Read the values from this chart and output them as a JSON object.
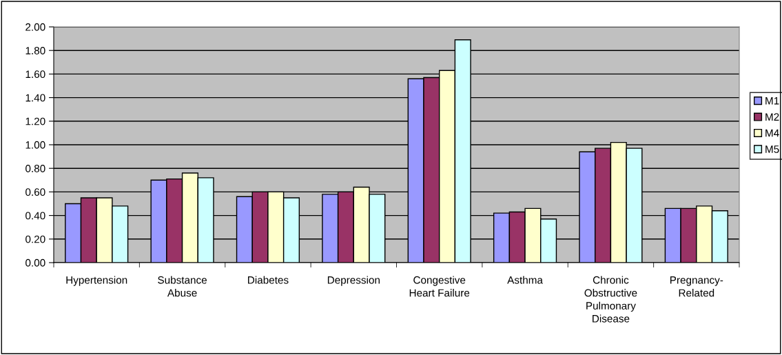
{
  "chart_data": {
    "type": "bar",
    "categories": [
      "Hypertension",
      "Substance\nAbuse",
      "Diabetes",
      "Depression",
      "Congestive\nHeart Failure",
      "Asthma",
      "Chronic\nObstructive\nPulmonary\nDisease",
      "Pregnancy-\nRelated"
    ],
    "series": [
      {
        "name": "M1",
        "color": "#9999ff",
        "values": [
          0.5,
          0.7,
          0.56,
          0.58,
          1.56,
          0.42,
          0.94,
          0.46
        ]
      },
      {
        "name": "M2",
        "color": "#993366",
        "values": [
          0.55,
          0.71,
          0.6,
          0.6,
          1.57,
          0.43,
          0.97,
          0.46
        ]
      },
      {
        "name": "M4",
        "color": "#ffffcc",
        "values": [
          0.55,
          0.76,
          0.6,
          0.64,
          1.63,
          0.46,
          1.02,
          0.48
        ]
      },
      {
        "name": "M5",
        "color": "#ccffff",
        "values": [
          0.48,
          0.72,
          0.55,
          0.58,
          1.89,
          0.37,
          0.97,
          0.44
        ]
      }
    ],
    "ylim": [
      0,
      2.0
    ],
    "yticks": [
      {
        "value": 0,
        "label": "0.00"
      },
      {
        "value": 0.2,
        "label": "0.20"
      },
      {
        "value": 0.4,
        "label": "0.40"
      },
      {
        "value": 0.6,
        "label": "0.60"
      },
      {
        "value": 0.8,
        "label": "0.80"
      },
      {
        "value": 1.0,
        "label": "1.00"
      },
      {
        "value": 1.2,
        "label": "1.20"
      },
      {
        "value": 1.4,
        "label": "1.40"
      },
      {
        "value": 1.6,
        "label": "1.60"
      },
      {
        "value": 1.8,
        "label": "1.80"
      },
      {
        "value": 2.0,
        "label": "2.00"
      }
    ],
    "grid": "y",
    "legend": "right"
  }
}
